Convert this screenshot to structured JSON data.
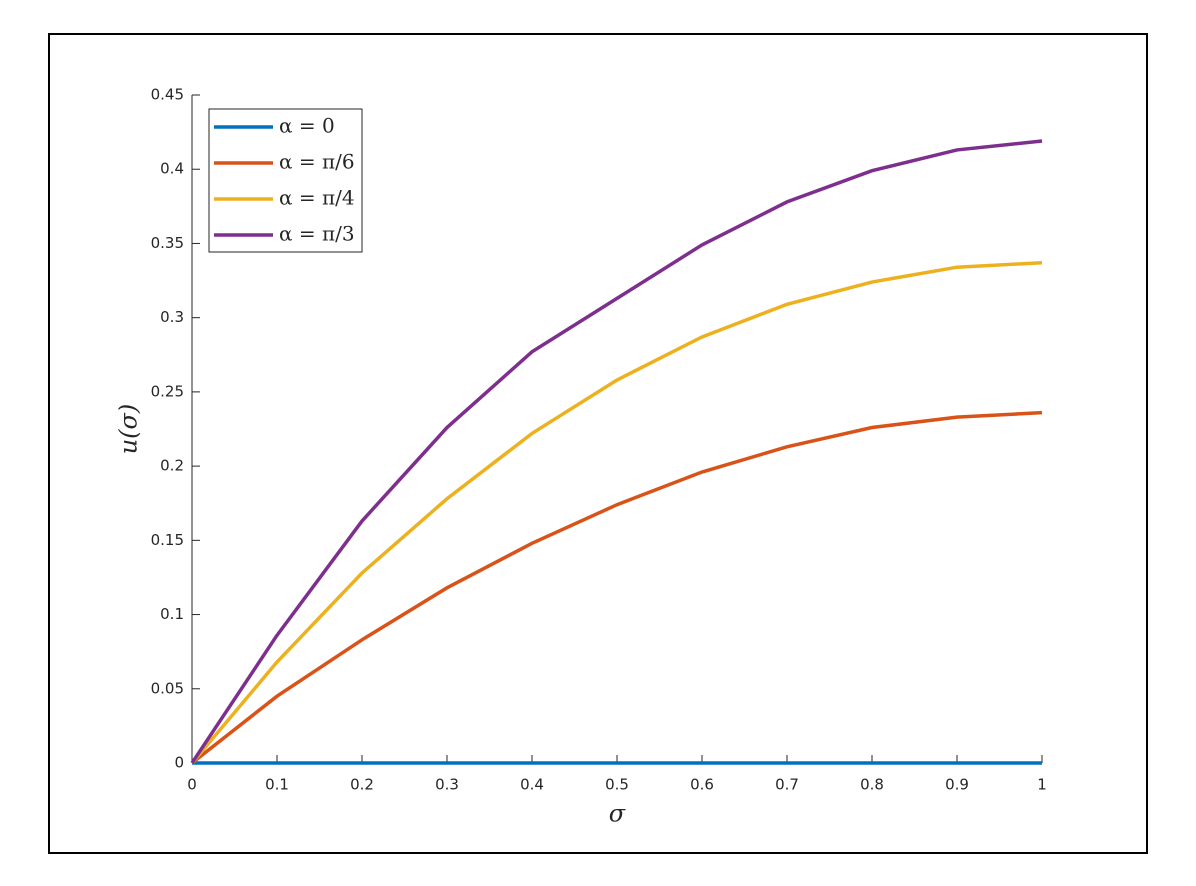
{
  "chart_data": {
    "type": "line",
    "xlabel": "σ",
    "ylabel": "u(σ)",
    "x": [
      0,
      0.1,
      0.2,
      0.3,
      0.4,
      0.5,
      0.6,
      0.7,
      0.8,
      0.9,
      1
    ],
    "series": [
      {
        "name": "α = 0",
        "color": "#0072bd",
        "values": [
          0,
          0,
          0,
          0,
          0,
          0,
          0,
          0,
          0,
          0,
          0
        ]
      },
      {
        "name": "α = π/6",
        "color": "#d95319",
        "values": [
          0,
          0.045,
          0.083,
          0.118,
          0.148,
          0.174,
          0.196,
          0.213,
          0.226,
          0.233,
          0.236
        ]
      },
      {
        "name": "α = π/4",
        "color": "#edb120",
        "values": [
          0,
          0.068,
          0.128,
          0.178,
          0.222,
          0.258,
          0.287,
          0.309,
          0.324,
          0.334,
          0.337
        ]
      },
      {
        "name": "α = π/3",
        "color": "#7e2f8e",
        "values": [
          0,
          0.086,
          0.163,
          0.226,
          0.277,
          0.313,
          0.349,
          0.378,
          0.399,
          0.413,
          0.419
        ]
      }
    ],
    "xlim": [
      0,
      1
    ],
    "ylim": [
      0,
      0.45
    ],
    "xticks": [
      0,
      0.1,
      0.2,
      0.3,
      0.4,
      0.5,
      0.6,
      0.7,
      0.8,
      0.9,
      1
    ],
    "yticks": [
      0,
      0.05,
      0.1,
      0.15,
      0.2,
      0.25,
      0.3,
      0.35,
      0.4,
      0.45
    ],
    "grid": false,
    "legend": "upper-left"
  }
}
